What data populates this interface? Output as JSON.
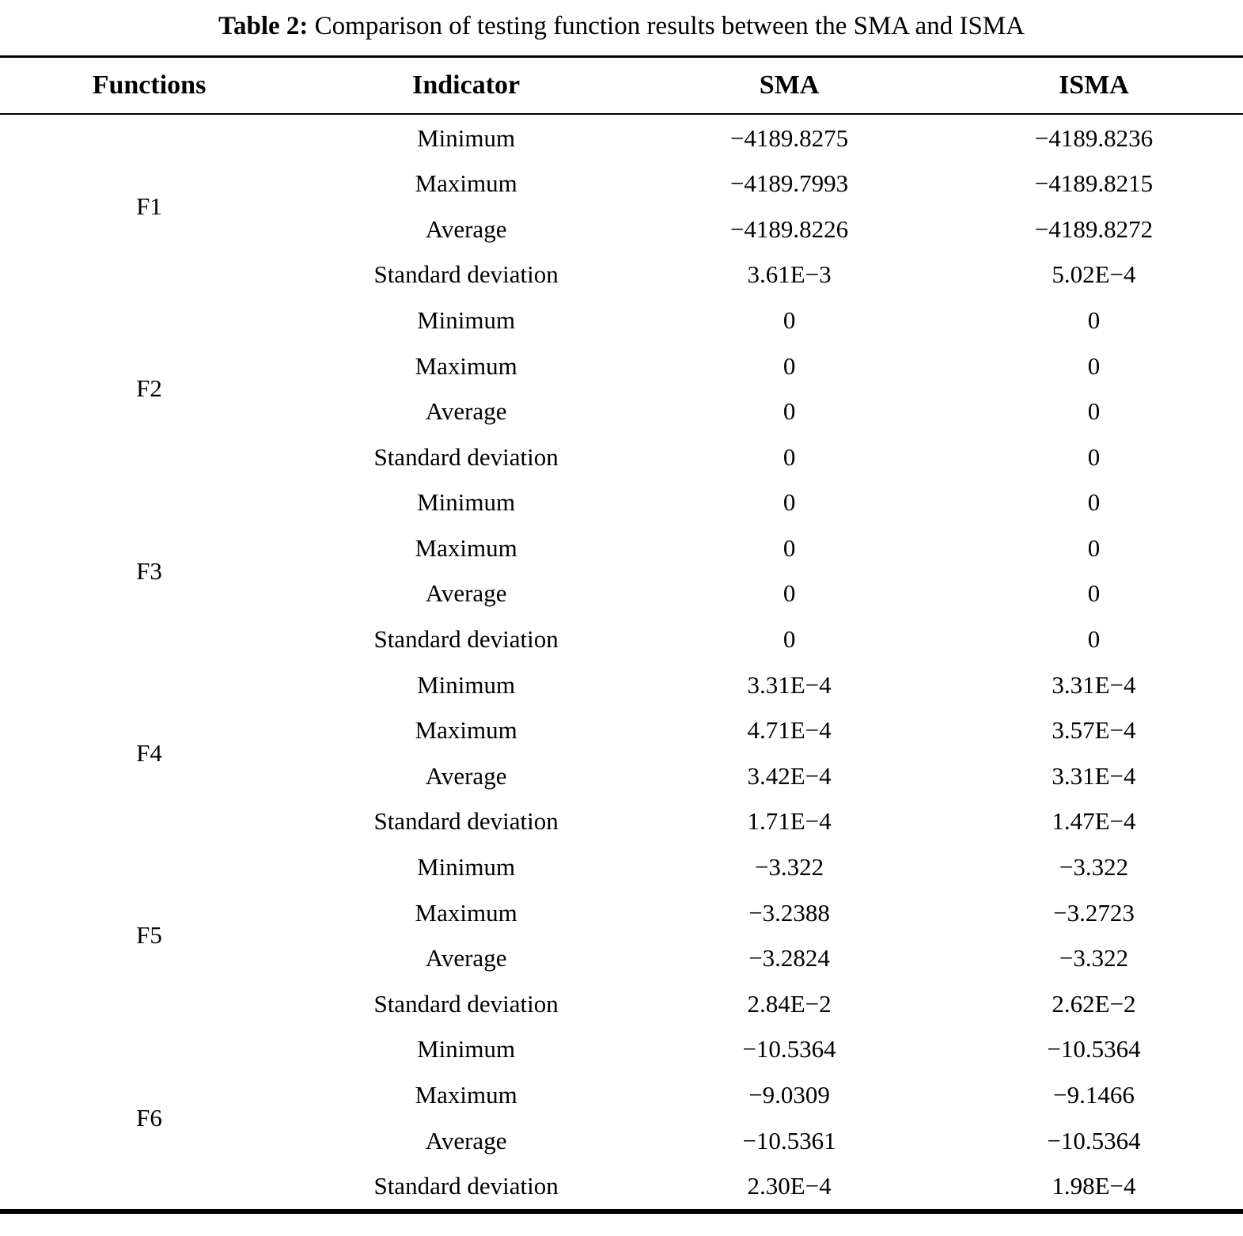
{
  "caption": {
    "label": "Table 2:",
    "text": " Comparison of testing function results between the SMA and ISMA"
  },
  "table": {
    "headers": [
      "Functions",
      "Indicator",
      "SMA",
      "ISMA"
    ],
    "indicators": [
      "Minimum",
      "Maximum",
      "Average",
      "Standard deviation"
    ],
    "groups": [
      {
        "function": "F1",
        "rows": [
          [
            "−4189.8275",
            "−4189.8236"
          ],
          [
            "−4189.7993",
            "−4189.8215"
          ],
          [
            "−4189.8226",
            "−4189.8272"
          ],
          [
            "3.61E−3",
            "5.02E−4"
          ]
        ]
      },
      {
        "function": "F2",
        "rows": [
          [
            "0",
            "0"
          ],
          [
            "0",
            "0"
          ],
          [
            "0",
            "0"
          ],
          [
            "0",
            "0"
          ]
        ]
      },
      {
        "function": "F3",
        "rows": [
          [
            "0",
            "0"
          ],
          [
            "0",
            "0"
          ],
          [
            "0",
            "0"
          ],
          [
            "0",
            "0"
          ]
        ]
      },
      {
        "function": "F4",
        "rows": [
          [
            "3.31E−4",
            "3.31E−4"
          ],
          [
            "4.71E−4",
            "3.57E−4"
          ],
          [
            "3.42E−4",
            "3.31E−4"
          ],
          [
            "1.71E−4",
            "1.47E−4"
          ]
        ]
      },
      {
        "function": "F5",
        "rows": [
          [
            "−3.322",
            "−3.322"
          ],
          [
            "−3.2388",
            "−3.2723"
          ],
          [
            "−3.2824",
            "−3.322"
          ],
          [
            "2.84E−2",
            "2.62E−2"
          ]
        ]
      },
      {
        "function": "F6",
        "rows": [
          [
            "−10.5364",
            "−10.5364"
          ],
          [
            "−9.0309",
            "−9.1466"
          ],
          [
            "−10.5361",
            "−10.5364"
          ],
          [
            "2.30E−4",
            "1.98E−4"
          ]
        ]
      }
    ]
  },
  "chart_data": {
    "type": "table",
    "title": "Table 2: Comparison of testing function results between the SMA and ISMA",
    "columns": [
      "Functions",
      "Indicator",
      "SMA",
      "ISMA"
    ],
    "rows": [
      [
        "F1",
        "Minimum",
        "−4189.8275",
        "−4189.8236"
      ],
      [
        "F1",
        "Maximum",
        "−4189.7993",
        "−4189.8215"
      ],
      [
        "F1",
        "Average",
        "−4189.8226",
        "−4189.8272"
      ],
      [
        "F1",
        "Standard deviation",
        "3.61E−3",
        "5.02E−4"
      ],
      [
        "F2",
        "Minimum",
        "0",
        "0"
      ],
      [
        "F2",
        "Maximum",
        "0",
        "0"
      ],
      [
        "F2",
        "Average",
        "0",
        "0"
      ],
      [
        "F2",
        "Standard deviation",
        "0",
        "0"
      ],
      [
        "F3",
        "Minimum",
        "0",
        "0"
      ],
      [
        "F3",
        "Maximum",
        "0",
        "0"
      ],
      [
        "F3",
        "Average",
        "0",
        "0"
      ],
      [
        "F3",
        "Standard deviation",
        "0",
        "0"
      ],
      [
        "F4",
        "Minimum",
        "3.31E−4",
        "3.31E−4"
      ],
      [
        "F4",
        "Maximum",
        "4.71E−4",
        "3.57E−4"
      ],
      [
        "F4",
        "Average",
        "3.42E−4",
        "3.31E−4"
      ],
      [
        "F4",
        "Standard deviation",
        "1.71E−4",
        "1.47E−4"
      ],
      [
        "F5",
        "Minimum",
        "−3.322",
        "−3.322"
      ],
      [
        "F5",
        "Maximum",
        "−3.2388",
        "−3.2723"
      ],
      [
        "F5",
        "Average",
        "−3.2824",
        "−3.322"
      ],
      [
        "F5",
        "Standard deviation",
        "2.84E−2",
        "2.62E−2"
      ],
      [
        "F6",
        "Minimum",
        "−10.5364",
        "−10.5364"
      ],
      [
        "F6",
        "Maximum",
        "−9.0309",
        "−9.1466"
      ],
      [
        "F6",
        "Average",
        "−10.5361",
        "−10.5364"
      ],
      [
        "F6",
        "Standard deviation",
        "2.30E−4",
        "1.98E−4"
      ]
    ]
  }
}
